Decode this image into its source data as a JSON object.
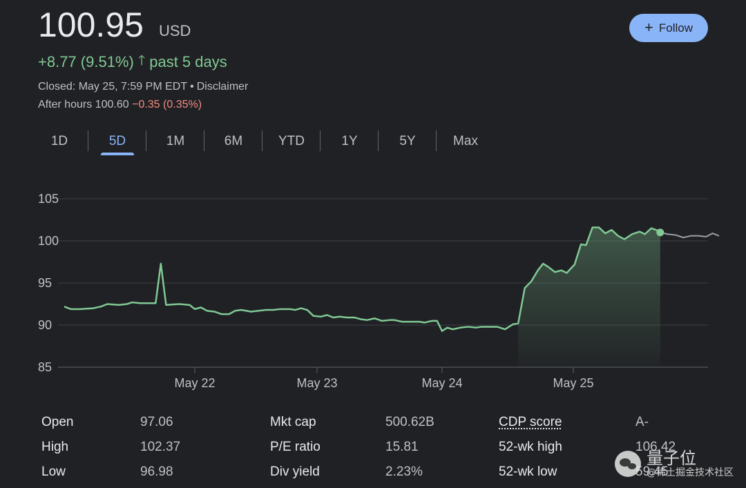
{
  "quote": {
    "price": "100.95",
    "currency": "USD",
    "change_text": "+8.77 (9.51%)",
    "change_period": "past 5 days",
    "closed_text": "Closed: May 25, 7:59 PM EDT",
    "disclaimer": "Disclaimer",
    "after_hours_label": "After hours 100.60",
    "after_hours_change": "−0.35 (0.35%)"
  },
  "follow_label": "Follow",
  "tabs": [
    {
      "label": "1D"
    },
    {
      "label": "5D",
      "active": true
    },
    {
      "label": "1M"
    },
    {
      "label": "6M"
    },
    {
      "label": "YTD"
    },
    {
      "label": "1Y"
    },
    {
      "label": "5Y"
    },
    {
      "label": "Max"
    }
  ],
  "chart_data": {
    "type": "line",
    "yticks": [
      85,
      90,
      95,
      100,
      105
    ],
    "ylim": [
      85,
      105
    ],
    "xlim": [
      0,
      5
    ],
    "xticks": [
      {
        "label": "May 22",
        "x": 1
      },
      {
        "label": "May 23",
        "x": 2
      },
      {
        "label": "May 24",
        "x": 3
      },
      {
        "label": "May 25",
        "x": 4
      }
    ],
    "grid": true,
    "colors": {
      "positive": "#81c995",
      "fill": "#81c995",
      "after_hours": "#9aa0a6",
      "grid": "#3c4043",
      "axis": "#5f6368"
    },
    "series": [
      {
        "values": [
          [
            0.0,
            92.2
          ],
          [
            0.05,
            91.9
          ],
          [
            0.12,
            91.9
          ],
          [
            0.22,
            92.0
          ],
          [
            0.28,
            92.2
          ],
          [
            0.33,
            92.5
          ],
          [
            0.42,
            92.4
          ],
          [
            0.48,
            92.5
          ],
          [
            0.52,
            92.7
          ],
          [
            0.58,
            92.6
          ],
          [
            0.66,
            92.6
          ],
          [
            0.7,
            92.6
          ],
          [
            0.74,
            97.3
          ],
          [
            0.78,
            92.4
          ],
          [
            0.88,
            92.5
          ],
          [
            0.96,
            92.4
          ],
          [
            1.0,
            91.9
          ],
          [
            1.05,
            92.1
          ],
          [
            1.1,
            91.7
          ],
          [
            1.16,
            91.6
          ],
          [
            1.22,
            91.3
          ],
          [
            1.28,
            91.3
          ],
          [
            1.33,
            91.7
          ],
          [
            1.38,
            91.8
          ],
          [
            1.46,
            91.6
          ],
          [
            1.52,
            91.7
          ],
          [
            1.58,
            91.8
          ],
          [
            1.64,
            91.8
          ],
          [
            1.7,
            91.9
          ],
          [
            1.78,
            91.9
          ],
          [
            1.82,
            91.8
          ],
          [
            1.87,
            92.0
          ],
          [
            1.92,
            91.8
          ],
          [
            1.97,
            91.1
          ],
          [
            2.03,
            91.0
          ],
          [
            2.08,
            91.2
          ],
          [
            2.13,
            90.9
          ],
          [
            2.18,
            91.0
          ],
          [
            2.24,
            90.9
          ],
          [
            2.3,
            90.9
          ],
          [
            2.35,
            90.7
          ],
          [
            2.4,
            90.6
          ],
          [
            2.46,
            90.8
          ],
          [
            2.52,
            90.5
          ],
          [
            2.58,
            90.6
          ],
          [
            2.62,
            90.6
          ],
          [
            2.68,
            90.4
          ],
          [
            2.74,
            90.4
          ],
          [
            2.82,
            90.4
          ],
          [
            2.86,
            90.3
          ],
          [
            2.92,
            90.5
          ],
          [
            2.96,
            90.5
          ],
          [
            3.0,
            89.3
          ],
          [
            3.04,
            89.7
          ],
          [
            3.08,
            89.5
          ],
          [
            3.14,
            89.7
          ],
          [
            3.2,
            89.8
          ],
          [
            3.26,
            89.7
          ],
          [
            3.3,
            89.8
          ],
          [
            3.36,
            89.8
          ],
          [
            3.42,
            89.8
          ],
          [
            3.48,
            89.5
          ],
          [
            3.54,
            90.1
          ],
          [
            3.58,
            90.2
          ],
          [
            3.63,
            94.4
          ],
          [
            3.68,
            95.2
          ],
          [
            3.73,
            96.5
          ],
          [
            3.77,
            97.3
          ],
          [
            3.81,
            96.9
          ],
          [
            3.86,
            96.3
          ],
          [
            3.91,
            96.5
          ],
          [
            3.95,
            96.2
          ],
          [
            4.01,
            97.2
          ],
          [
            4.06,
            99.6
          ],
          [
            4.1,
            99.5
          ],
          [
            4.15,
            101.6
          ],
          [
            4.2,
            101.6
          ],
          [
            4.25,
            100.9
          ],
          [
            4.3,
            101.3
          ],
          [
            4.35,
            100.6
          ],
          [
            4.4,
            100.2
          ],
          [
            4.46,
            100.8
          ],
          [
            4.52,
            101.1
          ],
          [
            4.56,
            100.8
          ],
          [
            4.61,
            101.5
          ],
          [
            4.65,
            101.3
          ],
          [
            4.68,
            101.0
          ]
        ]
      },
      {
        "values": [
          [
            4.68,
            101.0
          ],
          [
            4.74,
            100.8
          ],
          [
            4.8,
            100.7
          ],
          [
            4.86,
            100.4
          ],
          [
            4.92,
            100.6
          ],
          [
            4.98,
            100.6
          ],
          [
            5.04,
            100.5
          ],
          [
            5.09,
            100.9
          ],
          [
            5.14,
            100.6
          ]
        ]
      }
    ]
  },
  "stats": {
    "col1": [
      {
        "label": "Open",
        "value": "97.06"
      },
      {
        "label": "High",
        "value": "102.37"
      },
      {
        "label": "Low",
        "value": "96.98"
      }
    ],
    "col2": [
      {
        "label": "Mkt cap",
        "value": "500.62B"
      },
      {
        "label": "P/E ratio",
        "value": "15.81"
      },
      {
        "label": "Div yield",
        "value": "2.23%"
      }
    ],
    "col3": [
      {
        "label": "CDP score",
        "value": "A-"
      },
      {
        "label": "52-wk high",
        "value": "106.42"
      },
      {
        "label": "52-wk low",
        "value": "59.45"
      }
    ]
  },
  "watermark": {
    "main": "量子位",
    "sub": "@稀土掘金技术社区"
  }
}
